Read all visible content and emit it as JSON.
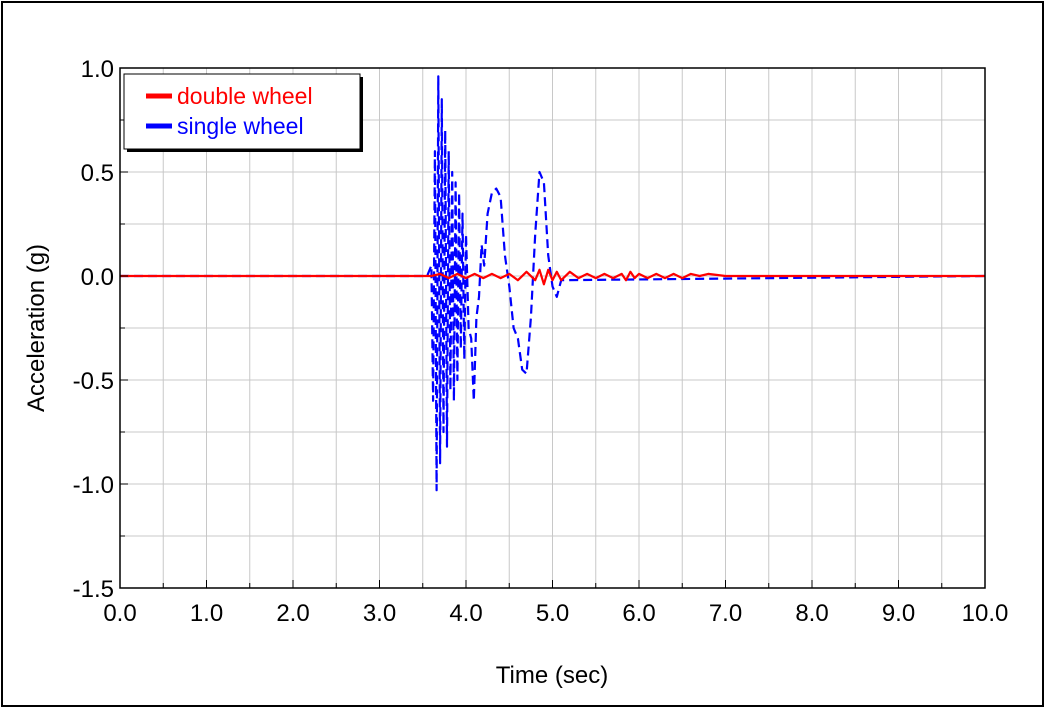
{
  "chart_data": {
    "type": "line",
    "title": "",
    "xlabel": "Time (sec)",
    "ylabel": "Acceleration (g)",
    "xlim": [
      0,
      10
    ],
    "ylim": [
      -1.5,
      1.0
    ],
    "x_ticks": [
      0,
      1,
      2,
      3,
      4,
      5,
      6,
      7,
      8,
      9,
      10
    ],
    "x_tick_labels": [
      "0.0",
      "1.0",
      "2.0",
      "3.0",
      "4.0",
      "5.0",
      "6.0",
      "7.0",
      "8.0",
      "9.0",
      "10.0"
    ],
    "y_ticks": [
      1.0,
      0.5,
      0.0,
      -0.5,
      -1.0,
      -1.5
    ],
    "y_tick_labels": [
      "1.0",
      "0.5",
      "0.0",
      "-0.5",
      "-1.0",
      "-1.5"
    ],
    "grid": true,
    "legend_position": "top-left",
    "series": [
      {
        "name": "double wheel",
        "color": "#ff0000",
        "style": "solid",
        "x": [
          0,
          3.6,
          3.7,
          3.8,
          3.9,
          4.0,
          4.1,
          4.2,
          4.3,
          4.4,
          4.5,
          4.6,
          4.7,
          4.8,
          4.85,
          4.9,
          4.95,
          5.0,
          5.05,
          5.1,
          5.2,
          5.3,
          5.4,
          5.5,
          5.6,
          5.7,
          5.8,
          5.85,
          5.9,
          5.95,
          6.0,
          6.1,
          6.2,
          6.3,
          6.4,
          6.5,
          6.6,
          6.7,
          6.8,
          7.0,
          10.0
        ],
        "y": [
          0,
          0,
          0.01,
          -0.01,
          0.01,
          -0.01,
          0.01,
          -0.01,
          0.01,
          -0.01,
          0.01,
          -0.02,
          0.02,
          -0.02,
          0.03,
          -0.04,
          0.03,
          -0.02,
          0.02,
          -0.02,
          0.02,
          -0.01,
          0.01,
          -0.01,
          0.01,
          -0.01,
          0.01,
          -0.02,
          0.02,
          -0.01,
          0.01,
          -0.01,
          0.01,
          -0.01,
          0.01,
          -0.01,
          0.01,
          0,
          0.01,
          0,
          0
        ]
      },
      {
        "name": "single wheel",
        "color": "#0000ff",
        "style": "dashed",
        "x": [
          0,
          3.55,
          3.6,
          3.62,
          3.64,
          3.66,
          3.68,
          3.7,
          3.72,
          3.74,
          3.76,
          3.78,
          3.8,
          3.82,
          3.84,
          3.86,
          3.88,
          3.9,
          3.92,
          3.94,
          3.96,
          3.98,
          4.0,
          4.03,
          4.06,
          4.09,
          4.12,
          4.15,
          4.18,
          4.21,
          4.25,
          4.3,
          4.35,
          4.4,
          4.45,
          4.5,
          4.55,
          4.6,
          4.65,
          4.7,
          4.75,
          4.8,
          4.85,
          4.9,
          4.95,
          5.0,
          5.05,
          5.1,
          10.0
        ],
        "y": [
          0,
          0,
          0.05,
          -0.6,
          0.6,
          -1.03,
          0.96,
          -0.9,
          0.85,
          -0.75,
          0.7,
          -0.82,
          0.6,
          -0.55,
          0.5,
          -0.6,
          0.45,
          -0.5,
          0.4,
          -0.35,
          0.3,
          -0.4,
          0.2,
          -0.25,
          -0.3,
          -0.6,
          -0.2,
          -0.1,
          0.15,
          0.05,
          0.3,
          0.4,
          0.42,
          0.38,
          0.1,
          -0.05,
          -0.25,
          -0.3,
          -0.45,
          -0.47,
          -0.2,
          0.2,
          0.5,
          0.45,
          0.1,
          -0.05,
          -0.1,
          -0.02,
          0
        ]
      }
    ]
  }
}
